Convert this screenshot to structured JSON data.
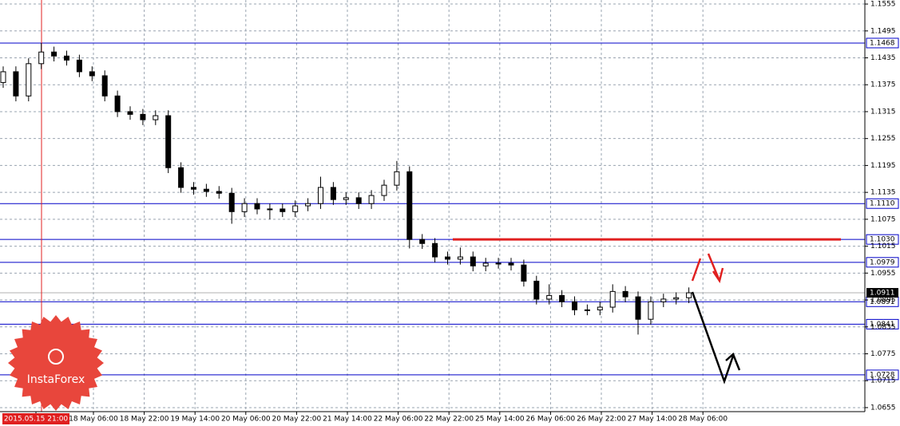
{
  "chart_data": {
    "type": "candlestick",
    "logo": "InstaForex",
    "x_labels": [
      "2015.05.15 21:00",
      "18 May 06:00",
      "18 May 22:00",
      "19 May 14:00",
      "20 May 06:00",
      "20 May 22:00",
      "21 May 14:00",
      "22 May 06:00",
      "22 May 22:00",
      "25 May 14:00",
      "26 May 06:00",
      "26 May 22:00",
      "27 May 14:00",
      "28 May 06:00"
    ],
    "ylim": [
      1.0646,
      1.1564
    ],
    "yticks": [
      1.1555,
      1.1495,
      1.1435,
      1.1375,
      1.1315,
      1.1255,
      1.1195,
      1.1135,
      1.1075,
      1.1015,
      1.0955,
      1.0895,
      1.0835,
      1.0775,
      1.0715,
      1.0655
    ],
    "grid": true,
    "levels": [
      1.1468,
      {
        "value": 1.111,
        "label": "1.1110"
      },
      {
        "value": 1.103,
        "label": "1.1030"
      },
      1.0979,
      1.0891,
      1.0841,
      1.0728
    ],
    "level_color": "#0000c8",
    "resistance_color": "#e02020",
    "last_price": 1.0911,
    "open": [
      1.138,
      1.1404,
      1.135,
      1.1422,
      1.1448,
      1.1439,
      1.143,
      1.1404,
      1.1395,
      1.135,
      1.1315,
      1.1309,
      1.1297,
      1.1306,
      1.119,
      1.1146,
      1.1142,
      1.1137,
      1.1133,
      1.1092,
      1.111,
      1.1098,
      1.1098,
      1.1092,
      1.1105,
      1.111,
      1.1146,
      1.1119,
      1.1123,
      1.111,
      1.1128,
      1.1151,
      1.1181,
      1.103,
      1.1021,
      1.0991,
      1.0986,
      1.0991,
      1.0971,
      1.0977,
      1.0977,
      1.0973,
      1.0937,
      1.0897,
      1.0905,
      1.0891,
      1.0873,
      1.0873,
      1.0879,
      1.0914,
      1.0902,
      1.0852,
      1.0891,
      1.0897,
      1.09
    ],
    "high": [
      1.1416,
      1.1416,
      1.1434,
      1.1468,
      1.146,
      1.1451,
      1.1442,
      1.1416,
      1.1407,
      1.1362,
      1.1327,
      1.1321,
      1.1318,
      1.1318,
      1.1202,
      1.1158,
      1.1154,
      1.1149,
      1.1145,
      1.1122,
      1.1122,
      1.111,
      1.111,
      1.1117,
      1.1122,
      1.117,
      1.1158,
      1.1135,
      1.1135,
      1.114,
      1.1163,
      1.1205,
      1.1193,
      1.1042,
      1.1033,
      1.1003,
      1.1012,
      1.1003,
      1.0989,
      1.0989,
      1.0989,
      1.0985,
      1.0949,
      1.093,
      1.0917,
      1.0903,
      1.0885,
      1.0891,
      1.093,
      1.0926,
      1.0914,
      1.0903,
      1.0909,
      1.0912,
      1.0923
    ],
    "low": [
      1.1368,
      1.1338,
      1.1338,
      1.141,
      1.1427,
      1.1418,
      1.1392,
      1.1383,
      1.1338,
      1.1303,
      1.1297,
      1.1285,
      1.1285,
      1.1178,
      1.1134,
      1.113,
      1.1125,
      1.1121,
      1.1065,
      1.108,
      1.1086,
      1.1075,
      1.108,
      1.108,
      1.1093,
      1.1098,
      1.1107,
      1.1107,
      1.1098,
      1.1098,
      1.1116,
      1.1139,
      1.101,
      1.1009,
      1.0979,
      1.0974,
      1.0974,
      1.0959,
      1.0959,
      1.0965,
      1.0961,
      1.0925,
      1.0885,
      1.0885,
      1.0879,
      1.0861,
      1.0861,
      1.0861,
      1.0867,
      1.089,
      1.0818,
      1.084,
      1.0879,
      1.0885,
      1.0888
    ],
    "close": [
      1.1404,
      1.135,
      1.1422,
      1.1448,
      1.1439,
      1.143,
      1.1404,
      1.1395,
      1.135,
      1.1315,
      1.1309,
      1.1297,
      1.1306,
      1.119,
      1.1146,
      1.1142,
      1.1137,
      1.1133,
      1.1092,
      1.111,
      1.1098,
      1.1098,
      1.1092,
      1.1105,
      1.111,
      1.1146,
      1.1119,
      1.1123,
      1.111,
      1.1128,
      1.1151,
      1.1181,
      1.103,
      1.1021,
      1.0991,
      1.0986,
      1.0991,
      1.0971,
      1.0977,
      1.0977,
      1.0973,
      1.0937,
      1.0897,
      1.0905,
      1.0891,
      1.0873,
      1.0873,
      1.0879,
      1.0914,
      1.0902,
      1.0852,
      1.0891,
      1.0897,
      1.09,
      1.0911
    ]
  }
}
